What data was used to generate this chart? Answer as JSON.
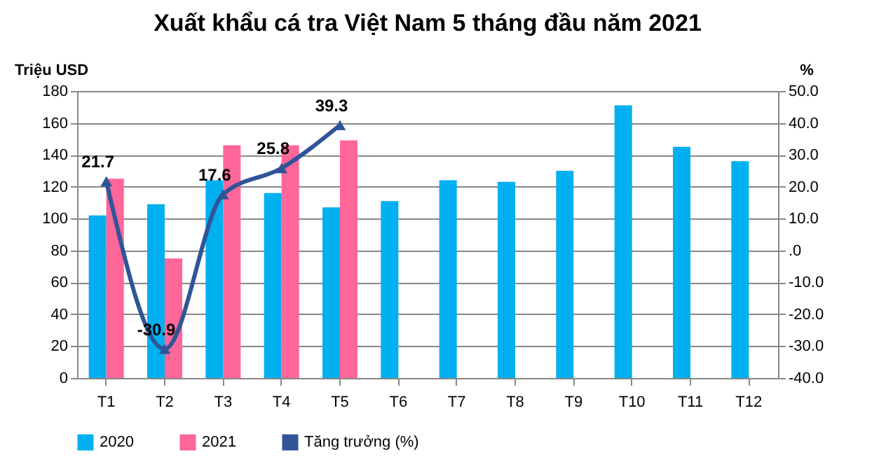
{
  "chart_data": {
    "type": "bar",
    "title": "Xuất khẩu cá tra Việt Nam 5 tháng đầu năm 2021",
    "ylabel": "Triệu USD",
    "y2label": "%",
    "categories": [
      "T1",
      "T2",
      "T3",
      "T4",
      "T5",
      "T6",
      "T7",
      "T8",
      "T9",
      "T10",
      "T11",
      "T12"
    ],
    "series": [
      {
        "name": "2020",
        "color": "#00b0f0",
        "values": [
          102,
          109,
          124,
          116,
          107,
          111,
          124,
          123,
          130,
          171,
          145,
          136
        ]
      },
      {
        "name": "2021",
        "color": "#ff6699",
        "values": [
          125,
          75,
          146,
          146,
          149,
          null,
          null,
          null,
          null,
          null,
          null,
          null
        ]
      },
      {
        "name": "Tăng trưởng (%)",
        "type": "line",
        "axis": "y2",
        "color": "#2f5597",
        "marker": "triangle",
        "values": [
          21.7,
          -30.9,
          17.6,
          25.8,
          39.3,
          null,
          null,
          null,
          null,
          null,
          null,
          null
        ],
        "value_labels": [
          "21.7",
          "-30.9",
          "17.6",
          "25.8",
          "39.3",
          null,
          null,
          null,
          null,
          null,
          null,
          null
        ]
      }
    ],
    "ylim": [
      0,
      180
    ],
    "yticks": [
      0,
      20,
      40,
      60,
      80,
      100,
      120,
      140,
      160,
      180
    ],
    "y2lim": [
      -40,
      50
    ],
    "y2ticks": [
      {
        "value": -40,
        "label": "-40.0"
      },
      {
        "value": -30,
        "label": "-30.0"
      },
      {
        "value": -20,
        "label": "-20.0"
      },
      {
        "value": -10,
        "label": "-10.0"
      },
      {
        "value": 0,
        "label": ".0"
      },
      {
        "value": 10,
        "label": "10.0"
      },
      {
        "value": 20,
        "label": "20.0"
      },
      {
        "value": 30,
        "label": "30.0"
      },
      {
        "value": 40,
        "label": "40.0"
      },
      {
        "value": 50,
        "label": "50.0"
      }
    ],
    "grid": "y",
    "legend": "bottom"
  }
}
